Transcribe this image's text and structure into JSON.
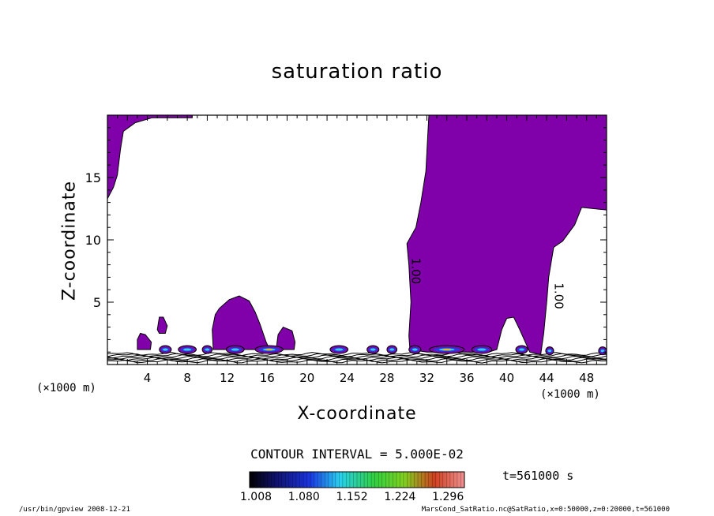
{
  "chart_data": {
    "type": "heatmap",
    "title": "saturation ratio",
    "xlabel": "X-coordinate",
    "ylabel": "Z-coordinate",
    "x_unit": "(×1000 m)",
    "xlim": [
      0,
      50
    ],
    "ylim": [
      0,
      20
    ],
    "x_ticks": [
      4,
      8,
      12,
      16,
      20,
      24,
      28,
      32,
      36,
      40,
      44,
      48
    ],
    "y_ticks": [
      5,
      10,
      15
    ],
    "contour_labels": [
      {
        "text": "1.00",
        "x": 30.5,
        "z": 7.5
      },
      {
        "text": "1.00",
        "x": 44.8,
        "z": 5.5
      }
    ],
    "contour_interval_label": "CONTOUR INTERVAL = 5.000E-02",
    "colorbar": {
      "tick_labels": [
        "1.008",
        "1.080",
        "1.152",
        "1.224",
        "1.296"
      ],
      "range": [
        1.008,
        1.296
      ]
    },
    "supersaturated_regions": [
      {
        "name": "top-left",
        "polygon": [
          [
            0,
            13.3
          ],
          [
            0.6,
            14.2
          ],
          [
            1.0,
            15.2
          ],
          [
            1.3,
            17.2
          ],
          [
            1.6,
            18.7
          ],
          [
            2.8,
            19.4
          ],
          [
            4.5,
            19.8
          ],
          [
            8.5,
            19.8
          ],
          [
            8.5,
            20
          ],
          [
            0,
            20
          ]
        ]
      },
      {
        "name": "right-column",
        "polygon": [
          [
            32.2,
            20
          ],
          [
            50,
            20
          ],
          [
            50,
            12.4
          ],
          [
            47.5,
            12.6
          ],
          [
            46.8,
            11.2
          ],
          [
            45.6,
            9.9
          ],
          [
            44.7,
            9.4
          ],
          [
            44.2,
            7.0
          ],
          [
            44.0,
            5.0
          ],
          [
            43.7,
            2.5
          ],
          [
            43.4,
            0.8
          ],
          [
            42.3,
            1.0
          ],
          [
            41.3,
            2.8
          ],
          [
            40.7,
            3.8
          ],
          [
            40.0,
            3.7
          ],
          [
            39.5,
            2.8
          ],
          [
            39.0,
            1.2
          ],
          [
            38.2,
            1.0
          ],
          [
            32.0,
            1.0
          ],
          [
            30.3,
            1.2
          ],
          [
            30.2,
            2.3
          ],
          [
            30.4,
            5.0
          ],
          [
            30.2,
            8.0
          ],
          [
            30.0,
            9.7
          ],
          [
            30.9,
            11.0
          ],
          [
            31.4,
            13.0
          ],
          [
            31.9,
            15.5
          ],
          [
            32.1,
            18.5
          ]
        ]
      },
      {
        "name": "mid-dome",
        "polygon": [
          [
            10.6,
            1.2
          ],
          [
            10.5,
            2.8
          ],
          [
            10.8,
            4.0
          ],
          [
            11.2,
            4.5
          ],
          [
            12.2,
            5.2
          ],
          [
            13.2,
            5.5
          ],
          [
            14.2,
            5.1
          ],
          [
            14.8,
            4.2
          ],
          [
            15.3,
            3.2
          ],
          [
            15.9,
            1.8
          ],
          [
            16.2,
            1.3
          ],
          [
            16.9,
            1.2
          ],
          [
            17.1,
            2.4
          ],
          [
            17.6,
            3.0
          ],
          [
            18.5,
            2.7
          ],
          [
            18.8,
            1.8
          ],
          [
            18.7,
            1.2
          ]
        ]
      },
      {
        "name": "small-blob-a",
        "polygon": [
          [
            3.0,
            1.2
          ],
          [
            3.0,
            2.0
          ],
          [
            3.3,
            2.5
          ],
          [
            3.8,
            2.4
          ],
          [
            4.4,
            1.8
          ],
          [
            4.3,
            1.2
          ]
        ]
      },
      {
        "name": "small-blob-b",
        "polygon": [
          [
            5.0,
            2.8
          ],
          [
            5.2,
            3.8
          ],
          [
            5.6,
            3.8
          ],
          [
            6.0,
            3.1
          ],
          [
            5.8,
            2.5
          ],
          [
            5.2,
            2.5
          ]
        ]
      }
    ],
    "cloud_base_spots": [
      {
        "x": 5.8,
        "z": 1.2,
        "w": 1.2
      },
      {
        "x": 8.0,
        "z": 1.2,
        "w": 1.8
      },
      {
        "x": 10.0,
        "z": 1.2,
        "w": 1.0
      },
      {
        "x": 12.8,
        "z": 1.2,
        "w": 1.8
      },
      {
        "x": 16.2,
        "z": 1.2,
        "w": 2.8
      },
      {
        "x": 23.2,
        "z": 1.2,
        "w": 1.8
      },
      {
        "x": 26.6,
        "z": 1.2,
        "w": 1.2
      },
      {
        "x": 28.5,
        "z": 1.2,
        "w": 1.0
      },
      {
        "x": 30.8,
        "z": 1.2,
        "w": 1.2
      },
      {
        "x": 34.0,
        "z": 1.2,
        "w": 3.5
      },
      {
        "x": 37.5,
        "z": 1.2,
        "w": 2.0
      },
      {
        "x": 41.5,
        "z": 1.2,
        "w": 1.2
      },
      {
        "x": 44.3,
        "z": 1.1,
        "w": 0.8
      },
      {
        "x": 49.6,
        "z": 1.1,
        "w": 0.8
      }
    ],
    "colors": {
      "supersaturated": "#8000aa",
      "axis": "#000000"
    }
  },
  "timestamp": "t=561000 s",
  "footer_left": "/usr/bin/gpview  2008-12-21",
  "footer_right": "MarsCond_SatRatio.nc@SatRatio,x=0:50000,z=0:20000,t=561000"
}
